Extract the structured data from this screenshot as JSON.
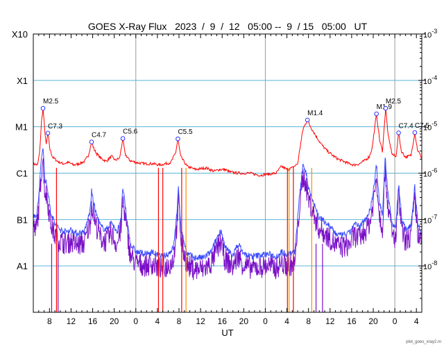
{
  "chart_data": {
    "type": "line",
    "title": "GOES X-Ray Flux   2023  /  9  /  12   05:00 --  9  / 15   05:00   UT",
    "xlabel": "UT",
    "credit": "plot_goes_xray2.m",
    "x_range_hours": [
      5,
      77
    ],
    "y_scale": "log",
    "y_range_wm2": [
      1e-09,
      0.001
    ],
    "grid": true,
    "levels_left": [
      {
        "label": "X10",
        "value": 0.001
      },
      {
        "label": "X1",
        "value": 0.0001
      },
      {
        "label": "M1",
        "value": 1e-05
      },
      {
        "label": "C1",
        "value": 1e-06
      },
      {
        "label": "B1",
        "value": 1e-07
      },
      {
        "label": "A1",
        "value": 1e-08
      }
    ],
    "right_ticks": [
      {
        "base": "10",
        "exp": "-3",
        "value": 0.001
      },
      {
        "base": "10",
        "exp": "-4",
        "value": 0.0001
      },
      {
        "base": "10",
        "exp": "-5",
        "value": 1e-05
      },
      {
        "base": "10",
        "exp": "-6",
        "value": 1e-06
      },
      {
        "base": "10",
        "exp": "-7",
        "value": 1e-07
      },
      {
        "base": "10",
        "exp": "-8",
        "value": 1e-08
      }
    ],
    "x_ticks": [
      {
        "label": "8",
        "hour": 8
      },
      {
        "label": "12",
        "hour": 12
      },
      {
        "label": "16",
        "hour": 16
      },
      {
        "label": "20",
        "hour": 20
      },
      {
        "label": "0",
        "hour": 24
      },
      {
        "label": "4",
        "hour": 28
      },
      {
        "label": "8",
        "hour": 32
      },
      {
        "label": "12",
        "hour": 36
      },
      {
        "label": "16",
        "hour": 40
      },
      {
        "label": "20",
        "hour": 44
      },
      {
        "label": "0",
        "hour": 48
      },
      {
        "label": "4",
        "hour": 52
      },
      {
        "label": "8",
        "hour": 56
      },
      {
        "label": "12",
        "hour": 60
      },
      {
        "label": "16",
        "hour": 64
      },
      {
        "label": "20",
        "hour": 68
      },
      {
        "label": "0",
        "hour": 72
      },
      {
        "label": "4",
        "hour": 76
      }
    ],
    "day_boundaries_hours": [
      24,
      48,
      72
    ],
    "colors": {
      "long": "#ff0000",
      "short": "#3b4cff",
      "short_low": "#7b10c8",
      "dropout": "#ff8c00",
      "grid": "#5ab3d6",
      "marker": "#3030ff"
    },
    "flares": [
      {
        "label": "M2.5",
        "hour": 6.8,
        "flux": 2.5e-05
      },
      {
        "label": "C7.3",
        "hour": 7.7,
        "flux": 7.3e-06
      },
      {
        "label": "C4.7",
        "hour": 15.8,
        "flux": 4.7e-06
      },
      {
        "label": "C5.6",
        "hour": 21.6,
        "flux": 5.6e-06
      },
      {
        "label": "C5.5",
        "hour": 31.8,
        "flux": 5.5e-06
      },
      {
        "label": "M1.4",
        "hour": 55.8,
        "flux": 1.4e-05
      },
      {
        "label": "M1.9",
        "hour": 68.6,
        "flux": 1.9e-05
      },
      {
        "label": "M2.5",
        "hour": 70.3,
        "flux": 2.5e-05
      },
      {
        "label": "C7.4",
        "hour": 72.7,
        "flux": 7.4e-06
      },
      {
        "label": "C7.5",
        "hour": 75.7,
        "flux": 7.5e-06
      }
    ],
    "series": [
      {
        "name": "long",
        "points": [
          [
            5,
            1.6e-06
          ],
          [
            5.8,
            1.5e-06
          ],
          [
            6.2,
            3e-06
          ],
          [
            6.5,
            1.2e-05
          ],
          [
            6.8,
            2.5e-05
          ],
          [
            7.1,
            9e-06
          ],
          [
            7.4,
            4e-06
          ],
          [
            7.7,
            7.3e-06
          ],
          [
            8.1,
            3.2e-06
          ],
          [
            8.6,
            2.2e-06
          ],
          [
            9.5,
            1.8e-06
          ],
          [
            10.5,
            1.6e-06
          ],
          [
            11.5,
            1.7e-06
          ],
          [
            12.5,
            1.5e-06
          ],
          [
            13.5,
            1.6e-06
          ],
          [
            14.5,
            1.8e-06
          ],
          [
            15.2,
            2.4e-06
          ],
          [
            15.8,
            4.7e-06
          ],
          [
            16.3,
            3.2e-06
          ],
          [
            16.8,
            2.6e-06
          ],
          [
            17.5,
            2.1e-06
          ],
          [
            18.5,
            1.8e-06
          ],
          [
            19.5,
            2.3e-06
          ],
          [
            20.2,
            1.9e-06
          ],
          [
            21,
            2.1e-06
          ],
          [
            21.6,
            5.6e-06
          ],
          [
            22,
            2.6e-06
          ],
          [
            22.8,
            1.9e-06
          ],
          [
            24,
            1.7e-06
          ],
          [
            25.5,
            1.6e-06
          ],
          [
            27,
            1.6e-06
          ],
          [
            28.5,
            1.5e-06
          ],
          [
            29.5,
            1.6e-06
          ],
          [
            30.5,
            1.7e-06
          ],
          [
            31.4,
            2.8e-06
          ],
          [
            31.8,
            5.5e-06
          ],
          [
            32.3,
            2.3e-06
          ],
          [
            33.5,
            1.4e-06
          ],
          [
            35,
            1.2e-06
          ],
          [
            37,
            1.3e-06
          ],
          [
            38.5,
            1.1e-06
          ],
          [
            39.5,
            1.2e-06
          ],
          [
            40.5,
            1.2e-06
          ],
          [
            41.5,
            1.05e-06
          ],
          [
            43,
            1e-06
          ],
          [
            45,
            1e-06
          ],
          [
            47,
            9e-07
          ],
          [
            48.5,
            9.5e-07
          ],
          [
            50,
            1e-06
          ],
          [
            51,
            1.4e-06
          ],
          [
            52,
            1.2e-06
          ],
          [
            53,
            1.3e-06
          ],
          [
            54,
            1.6e-06
          ],
          [
            54.5,
            4e-06
          ],
          [
            55,
            9e-06
          ],
          [
            55.8,
            1.4e-05
          ],
          [
            56.5,
            9.5e-06
          ],
          [
            57.5,
            6e-06
          ],
          [
            58.5,
            4e-06
          ],
          [
            59.5,
            3e-06
          ],
          [
            60.5,
            2.4e-06
          ],
          [
            61.5,
            2e-06
          ],
          [
            62.5,
            1.8e-06
          ],
          [
            63.5,
            1.6e-06
          ],
          [
            64.5,
            1.5e-06
          ],
          [
            65.5,
            1.6e-06
          ],
          [
            66.5,
            1.9e-06
          ],
          [
            67.3,
            2.3e-06
          ],
          [
            67.8,
            3.5e-06
          ],
          [
            68.6,
            1.9e-05
          ],
          [
            69.2,
            5e-06
          ],
          [
            69.7,
            3e-06
          ],
          [
            70.3,
            2.5e-05
          ],
          [
            70.8,
            6e-06
          ],
          [
            71.5,
            2.6e-06
          ],
          [
            72.2,
            2.2e-06
          ],
          [
            72.7,
            7.4e-06
          ],
          [
            73.2,
            3e-06
          ],
          [
            74,
            2.2e-06
          ],
          [
            75,
            2.4e-06
          ],
          [
            75.7,
            7.5e-06
          ],
          [
            76.2,
            3.2e-06
          ],
          [
            77,
            2.1e-06
          ]
        ]
      },
      {
        "name": "short",
        "points": [
          [
            5,
            1.2e-07
          ],
          [
            5.5,
            1e-07
          ],
          [
            6,
            3e-07
          ],
          [
            6.5,
            2e-06
          ],
          [
            6.8,
            4e-06
          ],
          [
            7.1,
            8e-07
          ],
          [
            7.6,
            5e-07
          ],
          [
            8.2,
            1.5e-07
          ],
          [
            9,
            8e-08
          ],
          [
            10,
            6e-08
          ],
          [
            11,
            5.5e-08
          ],
          [
            12,
            6e-08
          ],
          [
            13,
            5e-08
          ],
          [
            14.5,
            5.5e-08
          ],
          [
            15.5,
            1.5e-07
          ],
          [
            15.8,
            4e-07
          ],
          [
            16.5,
            1.5e-07
          ],
          [
            17.5,
            7e-08
          ],
          [
            18.5,
            6e-08
          ],
          [
            19.5,
            9e-08
          ],
          [
            20.5,
            5e-08
          ],
          [
            21.3,
            1.2e-07
          ],
          [
            21.6,
            5e-07
          ],
          [
            22.2,
            1.3e-07
          ],
          [
            23,
            3e-08
          ],
          [
            24,
            2e-08
          ],
          [
            25,
            1.9e-08
          ],
          [
            26,
            1.8e-08
          ],
          [
            27,
            2e-08
          ],
          [
            28,
            1.7e-08
          ],
          [
            29,
            1.6e-08
          ],
          [
            30,
            1.8e-08
          ],
          [
            31,
            2.5e-08
          ],
          [
            31.6,
            1.4e-07
          ],
          [
            31.9,
            4.5e-07
          ],
          [
            32.4,
            6e-08
          ],
          [
            33.5,
            1.8e-08
          ],
          [
            35,
            1.5e-08
          ],
          [
            36.5,
            1.5e-08
          ],
          [
            38,
            2e-08
          ],
          [
            39,
            4e-08
          ],
          [
            39.8,
            6e-08
          ],
          [
            40.5,
            2.5e-08
          ],
          [
            42,
            1.7e-08
          ],
          [
            43,
            3e-08
          ],
          [
            44,
            1.8e-08
          ],
          [
            45.5,
            1.6e-08
          ],
          [
            47,
            1.7e-08
          ],
          [
            48.5,
            1.8e-08
          ],
          [
            50,
            1.6e-08
          ],
          [
            51,
            2e-08
          ],
          [
            52,
            1.8e-08
          ],
          [
            53.5,
            2e-08
          ],
          [
            54.3,
            3e-07
          ],
          [
            55,
            1.5e-06
          ],
          [
            55.5,
            1.1e-06
          ],
          [
            56,
            5e-07
          ],
          [
            57,
            2.2e-07
          ],
          [
            58,
            1.1e-07
          ],
          [
            59,
            9e-08
          ],
          [
            60,
            7e-08
          ],
          [
            61,
            5e-08
          ],
          [
            62,
            4.5e-08
          ],
          [
            63.5,
            5e-08
          ],
          [
            64.5,
            8e-08
          ],
          [
            65.5,
            7e-08
          ],
          [
            66.5,
            1e-07
          ],
          [
            67.5,
            1.7e-07
          ],
          [
            68.2,
            6e-07
          ],
          [
            68.6,
            1.5e-06
          ],
          [
            69.1,
            2.5e-07
          ],
          [
            69.7,
            1.2e-07
          ],
          [
            70.2,
            2.2e-06
          ],
          [
            70.7,
            4e-07
          ],
          [
            71.5,
            8e-08
          ],
          [
            72.2,
            7e-08
          ],
          [
            72.7,
            6e-07
          ],
          [
            73.3,
            1e-07
          ],
          [
            74,
            6e-08
          ],
          [
            75,
            8e-08
          ],
          [
            75.7,
            5e-07
          ],
          [
            76.3,
            8e-08
          ],
          [
            77,
            5e-08
          ]
        ]
      }
    ]
  }
}
